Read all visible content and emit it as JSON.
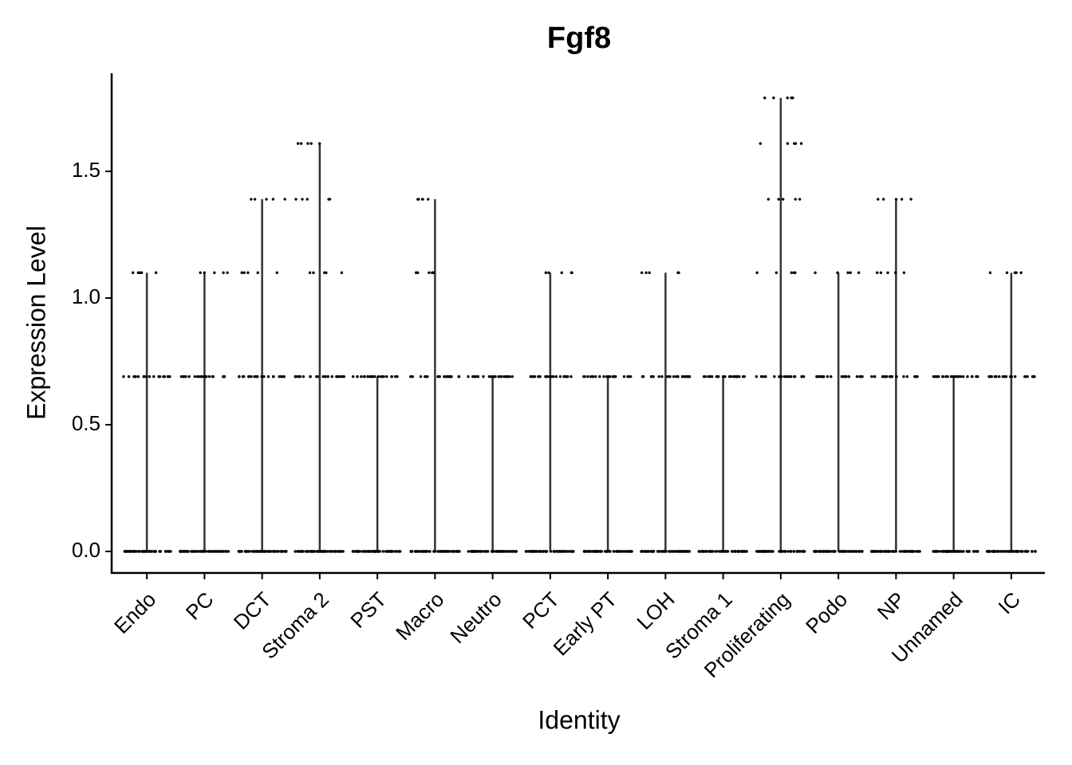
{
  "chart_data": {
    "type": "violin",
    "title": "Fgf8",
    "x_label": "Identity",
    "y_label": "Expression Level",
    "categories": [
      "Endo",
      "PC",
      "DCT",
      "Stroma 2",
      "PST",
      "Macro",
      "Neutro",
      "PCT",
      "Early PT",
      "LOH",
      "Stroma 1",
      "Proliferating",
      "Podo",
      "NP",
      "Unnamed",
      "IC"
    ],
    "values": [
      1.1,
      1.1,
      1.39,
      1.61,
      0.69,
      1.39,
      0.69,
      1.1,
      0.69,
      1.1,
      0.69,
      1.79,
      1.1,
      1.39,
      0.69,
      1.1
    ],
    "point_levels": [
      [
        0,
        0.69,
        1.1
      ],
      [
        0,
        0.69,
        1.1
      ],
      [
        0,
        0.69,
        1.1,
        1.39
      ],
      [
        0,
        0.69,
        1.1,
        1.39,
        1.61
      ],
      [
        0,
        0.69
      ],
      [
        0,
        0.69,
        1.1,
        1.39
      ],
      [
        0,
        0.69
      ],
      [
        0,
        0.69,
        1.1
      ],
      [
        0,
        0.69
      ],
      [
        0,
        0.69,
        1.1
      ],
      [
        0,
        0.69
      ],
      [
        0,
        0.69,
        1.1,
        1.39,
        1.61,
        1.79
      ],
      [
        0,
        0.69,
        1.1
      ],
      [
        0,
        0.69,
        1.1,
        1.39
      ],
      [
        0,
        0.69
      ],
      [
        0,
        0.69,
        1.1
      ]
    ],
    "color": "#333333",
    "point_color": "#000000",
    "ylim": [
      -0.085,
      1.887
    ],
    "yticks": [
      {
        "value": 0,
        "label": "0.0"
      },
      0.5,
      {
        "value": 1,
        "label": "1.0"
      },
      1.5
    ]
  }
}
